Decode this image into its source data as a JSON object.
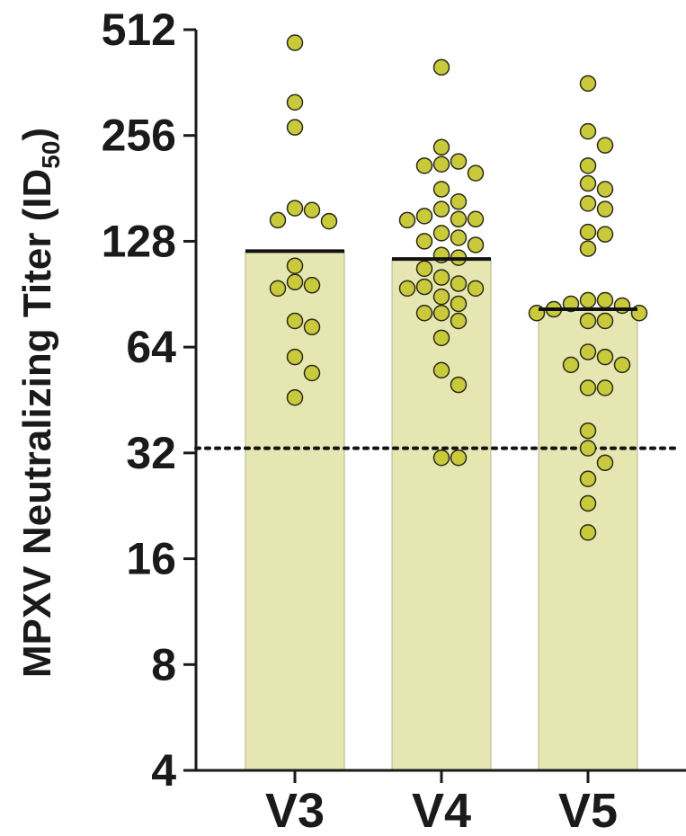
{
  "chart_data": {
    "type": "bar",
    "ylabel": "MPXV Neutralizing Titer (ID",
    "ylabel_subscript": "50",
    "ylabel_suffix": ")",
    "y_scale": "log2",
    "ylim": [
      4,
      512
    ],
    "yticks": [
      4,
      8,
      16,
      32,
      64,
      128,
      256,
      512
    ],
    "categories": [
      "V3",
      "V4",
      "V5"
    ],
    "values": [
      120,
      114,
      82
    ],
    "threshold": 33,
    "grid": false,
    "colors": {
      "bar_fill": "#e5e6b2",
      "bar_stroke": "#b5b58a",
      "point_fill": "#c9c93c",
      "point_stroke": "#2a2a1a",
      "line": "#111111",
      "axis": "#1a1a1a"
    },
    "points": [
      [
        470,
        318,
        270,
        157,
        146,
        147,
        159,
        98,
        109,
        94,
        96,
        76,
        73,
        60,
        54,
        46
      ],
      [
        400,
        237,
        216,
        210,
        212,
        200,
        180,
        166,
        158,
        148,
        147,
        151,
        148,
        135,
        131,
        125,
        128,
        115,
        117,
        107,
        101,
        97,
        94,
        95,
        89,
        94,
        85,
        80,
        80,
        76,
        68,
        55,
        50,
        31,
        31
      ],
      [
        360,
        263,
        240,
        210,
        180,
        187,
        164,
        158,
        134,
        136,
        122,
        87,
        87,
        85,
        84,
        80,
        80,
        82,
        76,
        76,
        62,
        60,
        57,
        57,
        49,
        49,
        37,
        33,
        30,
        27,
        23,
        19
      ]
    ]
  }
}
